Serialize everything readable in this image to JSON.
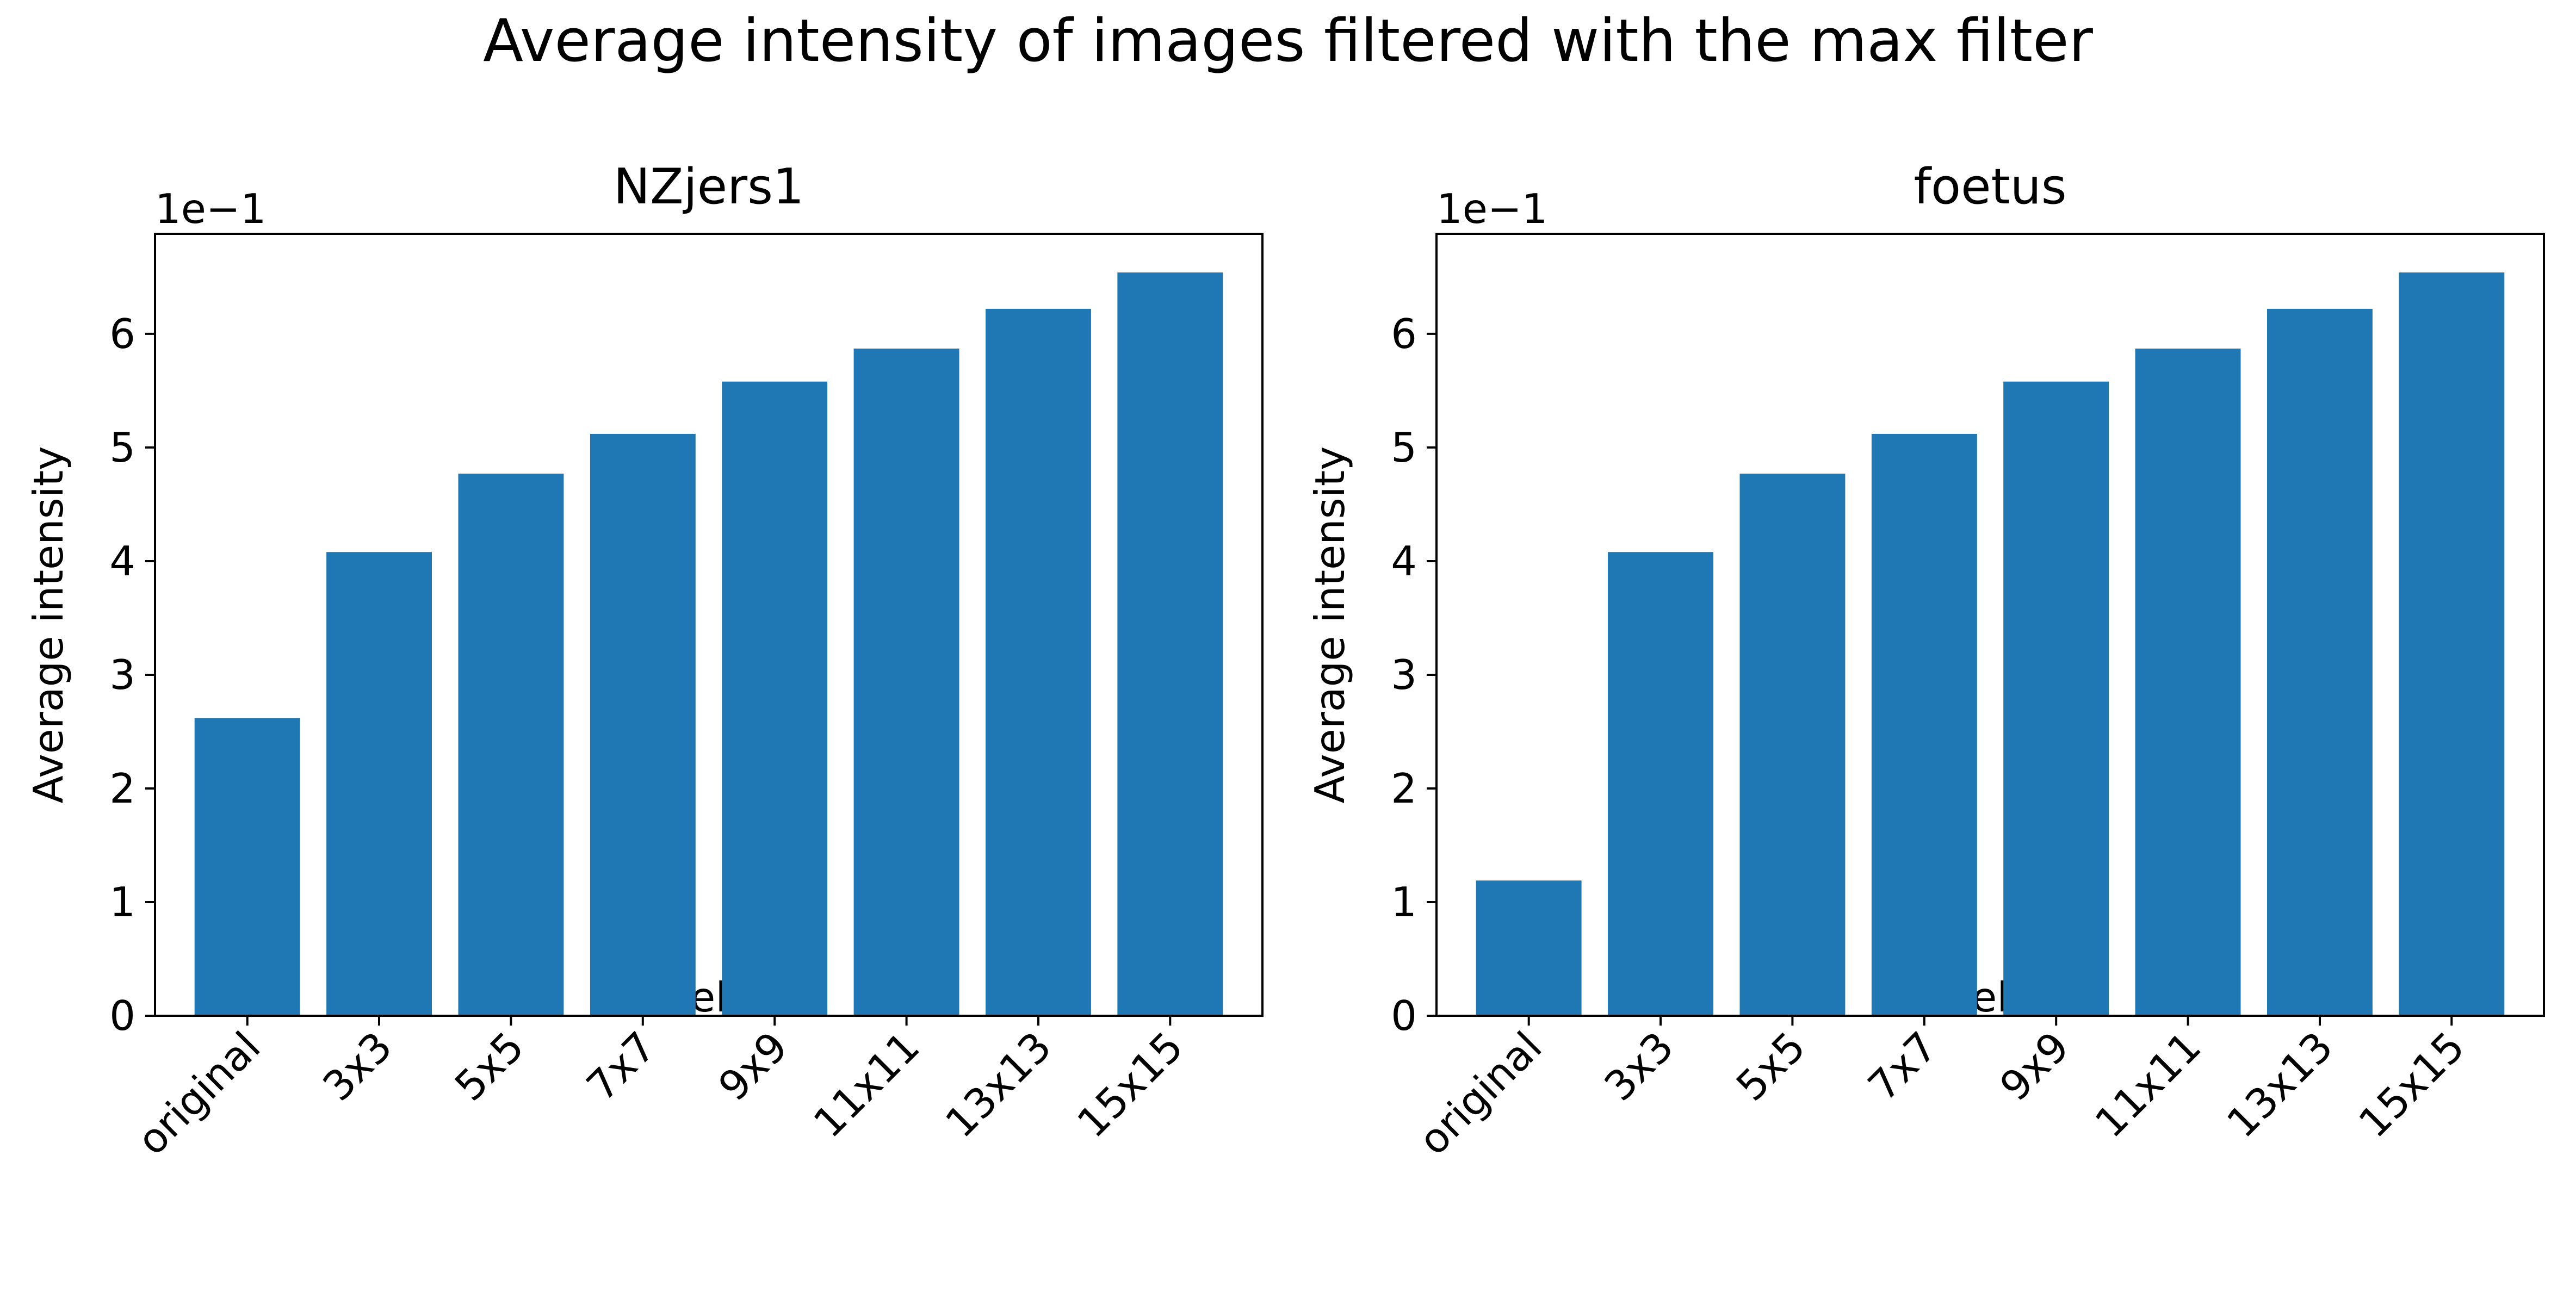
{
  "figure_title": "Average intensity of images filtered with the max filter",
  "bar_color": "#1f77b4",
  "chart_data": [
    {
      "type": "bar",
      "title": "NZjers1",
      "xlabel": "Kernel size",
      "ylabel": "Average intensity",
      "offset_text": "1e−1",
      "categories": [
        "original",
        "3x3",
        "5x5",
        "7x7",
        "9x9",
        "11x11",
        "13x13",
        "15x15"
      ],
      "values": [
        0.262,
        0.408,
        0.477,
        0.512,
        0.558,
        0.587,
        0.622,
        0.654
      ],
      "ylim": [
        0,
        0.688
      ],
      "yticks": [
        0,
        0.1,
        0.2,
        0.3,
        0.4,
        0.5,
        0.6
      ],
      "ytick_labels": [
        "0",
        "1",
        "2",
        "3",
        "4",
        "5",
        "6"
      ],
      "grid": false
    },
    {
      "type": "bar",
      "title": "foetus",
      "xlabel": "Kernel size",
      "ylabel": "Average intensity",
      "offset_text": "1e−1",
      "categories": [
        "original",
        "3x3",
        "5x5",
        "7x7",
        "9x9",
        "11x11",
        "13x13",
        "15x15"
      ],
      "values": [
        0.119,
        0.408,
        0.477,
        0.512,
        0.558,
        0.587,
        0.622,
        0.654
      ],
      "ylim": [
        0,
        0.688
      ],
      "yticks": [
        0,
        0.1,
        0.2,
        0.3,
        0.4,
        0.5,
        0.6
      ],
      "ytick_labels": [
        "0",
        "1",
        "2",
        "3",
        "4",
        "5",
        "6"
      ],
      "grid": false
    }
  ]
}
